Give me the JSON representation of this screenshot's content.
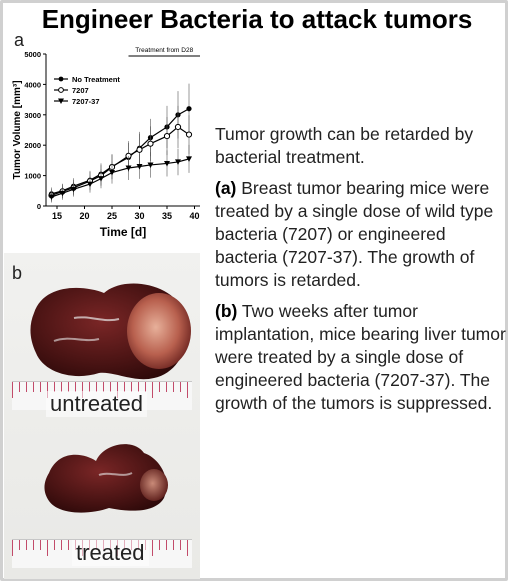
{
  "title": "Engineer Bacteria to attack tumors",
  "panel_a_label": "a",
  "panel_b_label": "b",
  "chart_data": {
    "type": "line",
    "xlabel": "Time [d]",
    "ylabel": "Tumor Volume [mm³]",
    "xticks": [
      15,
      20,
      25,
      30,
      35,
      40
    ],
    "yticks": [
      0,
      1000,
      2000,
      3000,
      4000,
      5000
    ],
    "xlim": [
      13,
      41
    ],
    "ylim": [
      0,
      5000
    ],
    "annotation": "Treatment from D28",
    "series": [
      {
        "name": "No Treatment",
        "marker": "filled-circle",
        "x": [
          14,
          16,
          18,
          21,
          23,
          25,
          28,
          30,
          32,
          35,
          37,
          39
        ],
        "y": [
          400,
          500,
          650,
          850,
          1050,
          1300,
          1600,
          1900,
          2250,
          2600,
          3000,
          3200
        ]
      },
      {
        "name": "7207",
        "marker": "open-circle",
        "x": [
          14,
          16,
          18,
          21,
          23,
          25,
          28,
          30,
          32,
          35,
          37,
          39
        ],
        "y": [
          350,
          480,
          600,
          820,
          1000,
          1280,
          1650,
          1850,
          2050,
          2300,
          2600,
          2350
        ]
      },
      {
        "name": "7207-37",
        "marker": "filled-triangle-down",
        "x": [
          14,
          16,
          18,
          21,
          23,
          25,
          28,
          30,
          32,
          35,
          37,
          39
        ],
        "y": [
          300,
          420,
          550,
          720,
          900,
          1100,
          1250,
          1300,
          1350,
          1400,
          1450,
          1550
        ]
      }
    ]
  },
  "photo_labels": {
    "untreated": "untreated",
    "treated": "treated"
  },
  "description": {
    "intro": "Tumor growth can be retarded by bacterial treatment.",
    "a_label": "(a)",
    "a_text": " Breast tumor bearing mice were treated by a single dose of wild type bacteria (7207) or engineered bacteria (7207-37). The growth of tumors is retarded.",
    "b_label": "(b)",
    "b_text": " Two weeks after tumor implantation, mice bearing liver tumor were treated by a single dose of engineered bacteria (7207-37). The growth of the tumors is suppressed."
  }
}
